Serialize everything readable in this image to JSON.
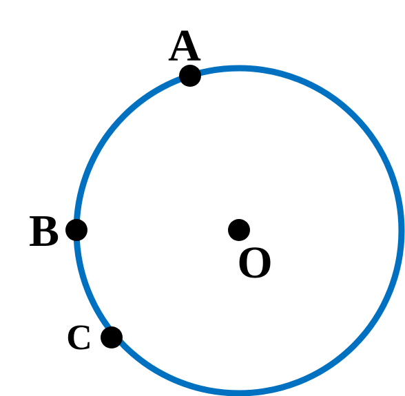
{
  "diagram": {
    "circle": {
      "stroke_color": "#0070C0"
    },
    "points": {
      "A": {
        "label": "A"
      },
      "B": {
        "label": "B"
      },
      "C": {
        "label": "C"
      },
      "O": {
        "label": "O"
      }
    },
    "dot_color": "#000000"
  }
}
